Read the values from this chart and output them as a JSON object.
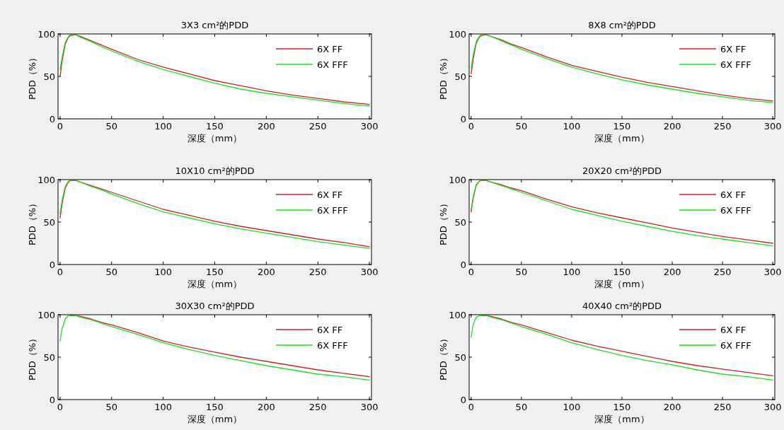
{
  "chart_data": [
    {
      "type": "line",
      "title": "3X3 cm²的PDD",
      "xlabel": "深度（mm）",
      "ylabel": "PDD（%）",
      "x": [
        0,
        2,
        5,
        8,
        10,
        15,
        20,
        30,
        40,
        50,
        75,
        100,
        125,
        150,
        175,
        200,
        225,
        250,
        275,
        300
      ],
      "xlim": [
        -2,
        302
      ],
      "ylim": [
        0,
        100
      ],
      "xticks": [
        0,
        50,
        100,
        150,
        200,
        250,
        300
      ],
      "yticks": [
        0,
        50,
        100
      ],
      "legend": "top right",
      "series": [
        {
          "name": "6X FF",
          "color": "#c0272d",
          "values": [
            50,
            68,
            88,
            96,
            98,
            99,
            97,
            92,
            87,
            82,
            70,
            61,
            53,
            45,
            39,
            33,
            28,
            24,
            20,
            17
          ]
        },
        {
          "name": "6X FFF",
          "color": "#22dd22",
          "values": [
            58,
            73,
            90,
            97,
            99,
            99,
            96,
            91,
            85,
            80,
            68,
            58,
            50,
            42,
            35,
            30,
            26,
            22,
            18,
            15
          ]
        }
      ]
    },
    {
      "type": "line",
      "title": "8X8 cm²的PDD",
      "xlabel": "深度（mm）",
      "ylabel": "PDD（%）",
      "x": [
        0,
        2,
        5,
        8,
        10,
        15,
        20,
        30,
        40,
        50,
        75,
        100,
        125,
        150,
        175,
        200,
        225,
        250,
        275,
        300
      ],
      "xlim": [
        -2,
        302
      ],
      "ylim": [
        0,
        100
      ],
      "xticks": [
        0,
        50,
        100,
        150,
        200,
        250,
        300
      ],
      "yticks": [
        0,
        50,
        100
      ],
      "legend": "top right",
      "series": [
        {
          "name": "6X FF",
          "color": "#c0272d",
          "values": [
            53,
            70,
            89,
            96,
            98,
            99,
            97,
            93,
            88,
            84,
            73,
            63,
            56,
            49,
            43,
            38,
            33,
            28,
            24,
            21
          ]
        },
        {
          "name": "6X FFF",
          "color": "#22dd22",
          "values": [
            60,
            75,
            91,
            97,
            99,
            99,
            97,
            92,
            87,
            82,
            71,
            61,
            53,
            46,
            40,
            35,
            30,
            26,
            22,
            19
          ]
        }
      ]
    },
    {
      "type": "line",
      "title": "10X10 cm²的PDD",
      "xlabel": "深度（mm）",
      "ylabel": "PDD（%）",
      "x": [
        0,
        2,
        5,
        8,
        10,
        15,
        20,
        30,
        40,
        50,
        75,
        100,
        125,
        150,
        175,
        200,
        225,
        250,
        275,
        300
      ],
      "xlim": [
        -2,
        302
      ],
      "ylim": [
        0,
        100
      ],
      "xticks": [
        0,
        50,
        100,
        150,
        200,
        250,
        300
      ],
      "yticks": [
        0,
        50,
        100
      ],
      "legend": "top right",
      "series": [
        {
          "name": "6X FF",
          "color": "#c0272d",
          "values": [
            55,
            72,
            90,
            97,
            99,
            99,
            97,
            93,
            89,
            85,
            75,
            65,
            58,
            51,
            45,
            40,
            35,
            30,
            26,
            21
          ]
        },
        {
          "name": "6X FFF",
          "color": "#22dd22",
          "values": [
            60,
            76,
            92,
            98,
            99,
            99,
            97,
            92,
            88,
            83,
            72,
            62,
            55,
            48,
            42,
            37,
            32,
            27,
            23,
            19
          ]
        }
      ]
    },
    {
      "type": "line",
      "title": "20X20 cm²的PDD",
      "xlabel": "深度（mm）",
      "ylabel": "PDD（%）",
      "x": [
        0,
        2,
        5,
        8,
        10,
        15,
        20,
        30,
        40,
        50,
        75,
        100,
        125,
        150,
        175,
        200,
        225,
        250,
        275,
        300
      ],
      "xlim": [
        -2,
        302
      ],
      "ylim": [
        0,
        100
      ],
      "xticks": [
        0,
        50,
        100,
        150,
        200,
        250,
        300
      ],
      "yticks": [
        0,
        50,
        100
      ],
      "legend": "top right",
      "series": [
        {
          "name": "6X FF",
          "color": "#c0272d",
          "values": [
            62,
            78,
            93,
            98,
            99,
            99,
            97,
            94,
            90,
            87,
            77,
            68,
            61,
            55,
            49,
            43,
            38,
            33,
            29,
            25
          ]
        },
        {
          "name": "6X FFF",
          "color": "#22dd22",
          "values": [
            65,
            80,
            94,
            98,
            99,
            99,
            97,
            93,
            89,
            85,
            75,
            65,
            58,
            51,
            45,
            39,
            34,
            30,
            26,
            22
          ]
        }
      ]
    },
    {
      "type": "line",
      "title": "30X30 cm²的PDD",
      "xlabel": "深度（mm）",
      "ylabel": "PDD（%）",
      "x": [
        0,
        2,
        5,
        8,
        10,
        15,
        20,
        30,
        40,
        50,
        75,
        100,
        125,
        150,
        175,
        200,
        225,
        250,
        275,
        300
      ],
      "xlim": [
        -2,
        302
      ],
      "ylim": [
        0,
        100
      ],
      "xticks": [
        0,
        50,
        100,
        150,
        200,
        250,
        300
      ],
      "yticks": [
        0,
        50,
        100
      ],
      "legend": "top right",
      "series": [
        {
          "name": "6X FF",
          "color": "#c0272d",
          "values": [
            null,
            null,
            null,
            null,
            99,
            99,
            98,
            95,
            91,
            88,
            79,
            69,
            62,
            56,
            50,
            45,
            40,
            35,
            31,
            27
          ]
        },
        {
          "name": "6X FFF",
          "color": "#22dd22",
          "values": [
            69,
            84,
            95,
            99,
            99,
            99,
            97,
            94,
            90,
            86,
            77,
            67,
            59,
            52,
            46,
            40,
            35,
            30,
            27,
            23
          ]
        }
      ]
    },
    {
      "type": "line",
      "title": "40X40 cm²的PDD",
      "xlabel": "深度（mm）",
      "ylabel": "PDD（%）",
      "x": [
        0,
        2,
        5,
        8,
        10,
        15,
        20,
        30,
        40,
        50,
        75,
        100,
        125,
        150,
        175,
        200,
        225,
        250,
        275,
        300
      ],
      "xlim": [
        -2,
        302
      ],
      "ylim": [
        0,
        100
      ],
      "xticks": [
        0,
        50,
        100,
        150,
        200,
        250,
        300
      ],
      "yticks": [
        0,
        50,
        100
      ],
      "legend": "top right",
      "series": [
        {
          "name": "6X FF",
          "color": "#c0272d",
          "values": [
            null,
            null,
            null,
            null,
            99,
            99,
            98,
            95,
            91,
            88,
            79,
            70,
            63,
            57,
            51,
            45,
            40,
            36,
            32,
            28
          ]
        },
        {
          "name": "6X FFF",
          "color": "#22dd22",
          "values": [
            74,
            88,
            97,
            99,
            99,
            99,
            97,
            94,
            90,
            86,
            77,
            67,
            59,
            52,
            46,
            41,
            35,
            30,
            27,
            23
          ]
        }
      ]
    }
  ]
}
